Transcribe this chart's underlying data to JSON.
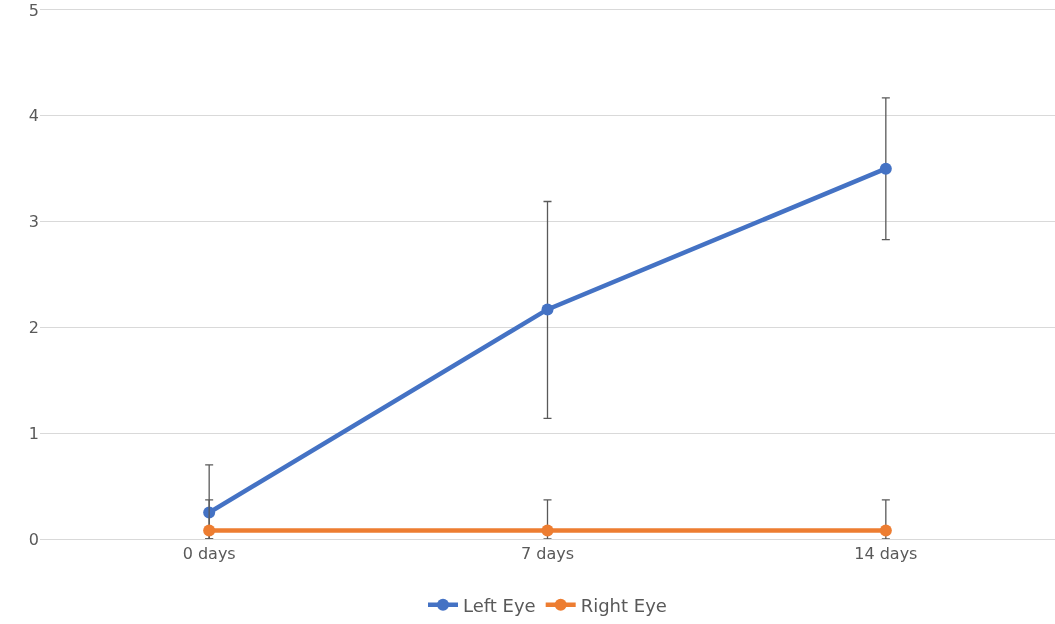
{
  "chart_data": {
    "type": "line",
    "categories": [
      "0 days",
      "7 days",
      "14 days"
    ],
    "series": [
      {
        "name": "Left Eye",
        "color": "#4472c4",
        "values": [
          0.25,
          2.17,
          3.5
        ],
        "errors": [
          [
            0,
            0.7
          ],
          [
            1.14,
            3.19
          ],
          [
            2.83,
            4.17
          ]
        ]
      },
      {
        "name": "Right Eye",
        "color": "#ed7d31",
        "values": [
          0.08,
          0.08,
          0.08
        ],
        "errors": [
          [
            0,
            0.37
          ],
          [
            0,
            0.37
          ],
          [
            0,
            0.37
          ]
        ]
      }
    ],
    "ylim": [
      0,
      5
    ],
    "yticks": [
      0,
      1,
      2,
      3,
      4,
      5
    ],
    "grid": "y",
    "legend": "bottom",
    "marker": "circle",
    "line_style": "solid"
  }
}
